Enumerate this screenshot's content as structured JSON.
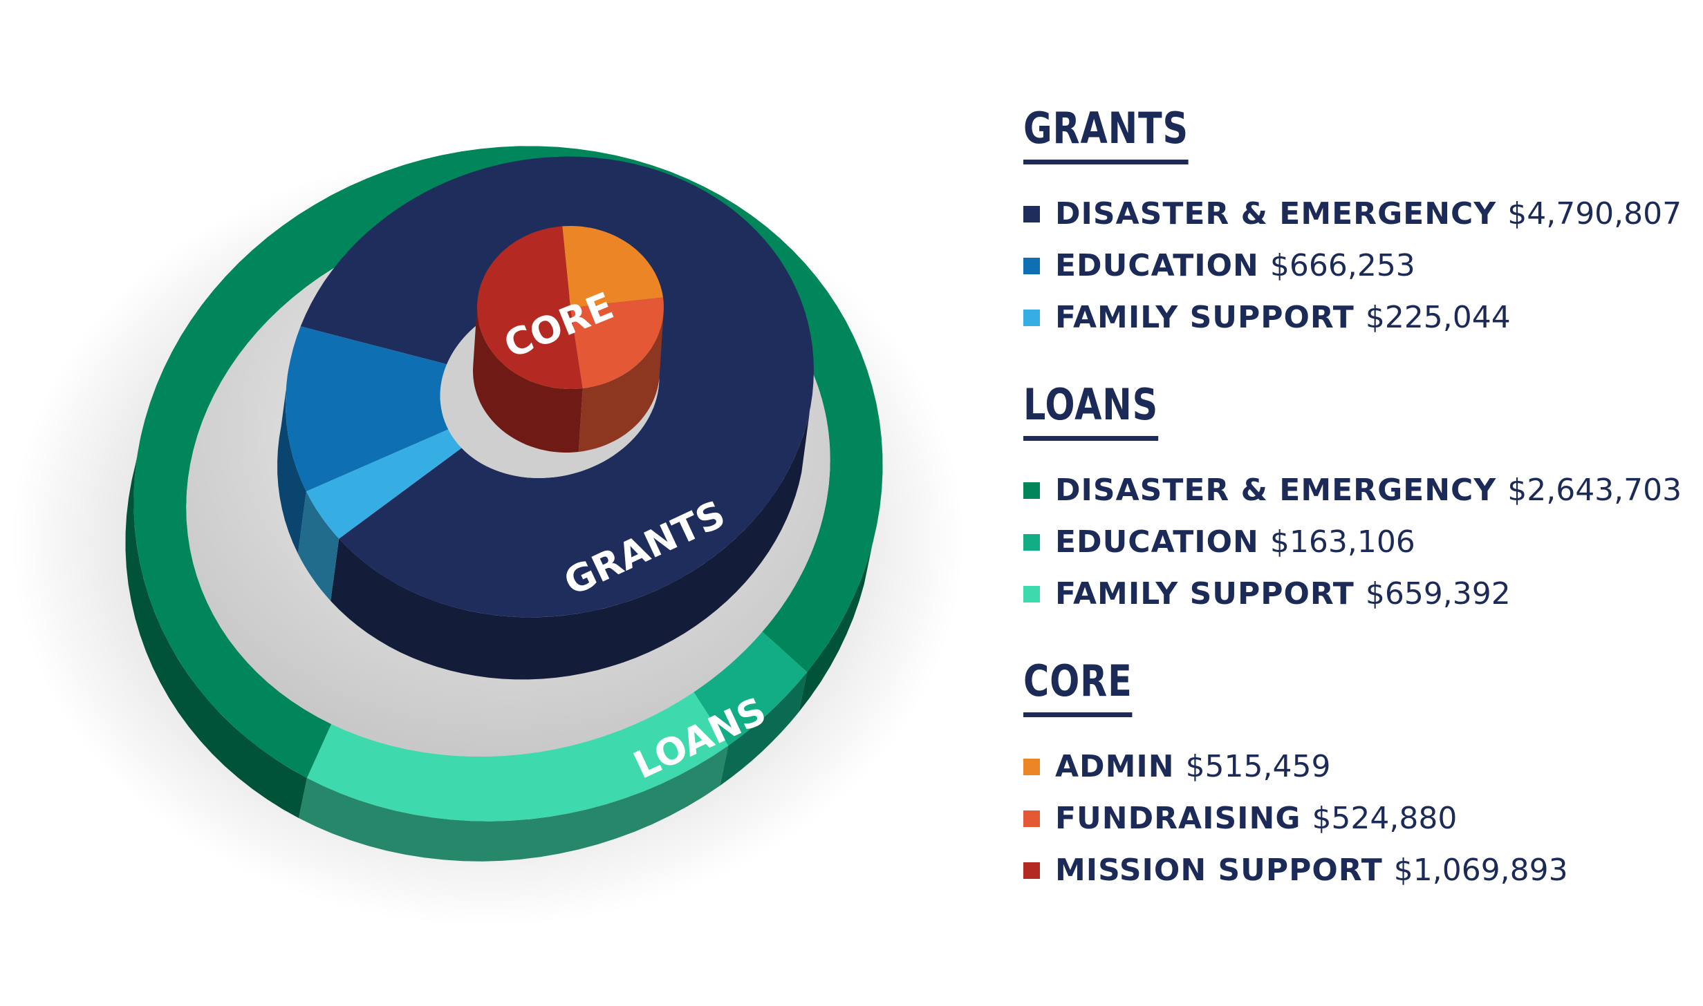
{
  "chart_data": {
    "type": "pie",
    "style": "nested 3D layered rings",
    "rings": [
      {
        "name": "LOANS",
        "label": "LOANS",
        "slices": [
          {
            "label": "DISASTER & EMERGENCY",
            "value": 2643703,
            "color": "#00865a"
          },
          {
            "label": "EDUCATION",
            "value": 163106,
            "color": "#12ad84"
          },
          {
            "label": "FAMILY SUPPORT",
            "value": 659392,
            "color": "#3ed9ac"
          }
        ]
      },
      {
        "name": "GRANTS",
        "label": "GRANTS",
        "slices": [
          {
            "label": "DISASTER & EMERGENCY",
            "value": 4790807,
            "color": "#1f2d5c"
          },
          {
            "label": "EDUCATION",
            "value": 666253,
            "color": "#0f6fb3"
          },
          {
            "label": "FAMILY SUPPORT",
            "value": 225044,
            "color": "#36ade3"
          }
        ]
      },
      {
        "name": "CORE",
        "label": "CORE",
        "slices": [
          {
            "label": "ADMIN",
            "value": 515459,
            "color": "#eb8526"
          },
          {
            "label": "FUNDRAISING",
            "value": 524880,
            "color": "#e45836"
          },
          {
            "label": "MISSION SUPPORT",
            "value": 1069893,
            "color": "#b42a22"
          }
        ]
      }
    ],
    "legend_position": "right"
  },
  "legend": {
    "groups": [
      {
        "title": "GRANTS",
        "items": [
          {
            "label": "DISASTER & EMERGENCY",
            "value": "$4,790,807",
            "color": "#1f2d5c"
          },
          {
            "label": "EDUCATION",
            "value": "$666,253",
            "color": "#0f6fb3"
          },
          {
            "label": "FAMILY SUPPORT",
            "value": "$225,044",
            "color": "#36ade3"
          }
        ]
      },
      {
        "title": "LOANS",
        "items": [
          {
            "label": "DISASTER & EMERGENCY",
            "value": "$2,643,703",
            "color": "#00865a"
          },
          {
            "label": "EDUCATION",
            "value": "$163,106",
            "color": "#12ad84"
          },
          {
            "label": "FAMILY SUPPORT",
            "value": "$659,392",
            "color": "#3ed9ac"
          }
        ]
      },
      {
        "title": "CORE",
        "items": [
          {
            "label": "ADMIN",
            "value": "$515,459",
            "color": "#eb8526"
          },
          {
            "label": "FUNDRAISING",
            "value": "$524,880",
            "color": "#e45836"
          },
          {
            "label": "MISSION SUPPORT",
            "value": "$1,069,893",
            "color": "#b42a22"
          }
        ]
      }
    ]
  }
}
